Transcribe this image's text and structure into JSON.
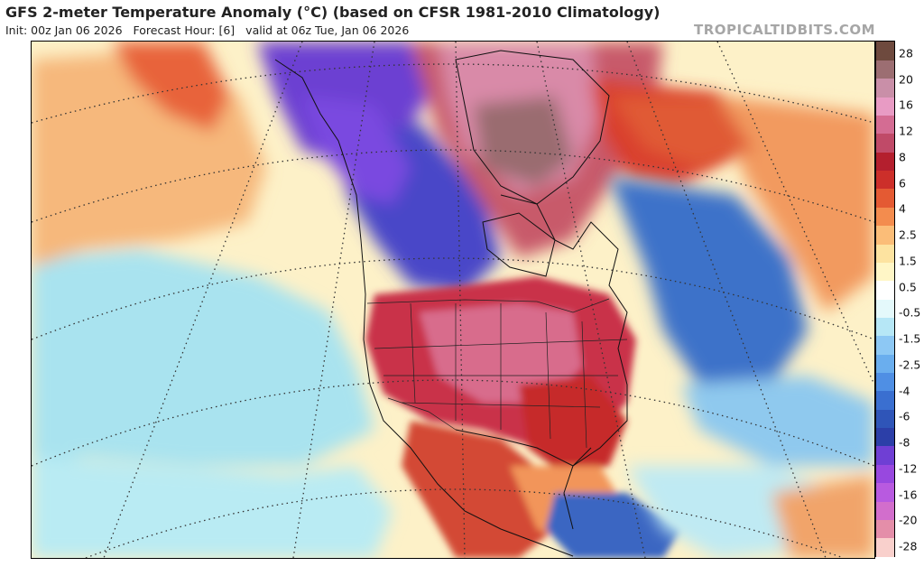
{
  "title": "GFS 2-meter Temperature Anomaly (°C) (based on CFSR 1981-2010 Climatology)",
  "subtitle": {
    "init": "Init: 00z Jan 06 2026",
    "forecast_hour": "Forecast Hour: [6]",
    "valid": "valid at 06z Tue, Jan 06 2026"
  },
  "credit": "TROPICALTIDBITS.COM",
  "colorbar": {
    "colors": [
      "#f9d0cc",
      "#e48ea9",
      "#d26ecc",
      "#b85ae0",
      "#9848df",
      "#6f3fd4",
      "#2c3fa8",
      "#2f55b8",
      "#3a6fd0",
      "#4f8fe4",
      "#6aaeee",
      "#8dc8f4",
      "#b6e7f6",
      "#e4f9fb",
      "#ffffff",
      "#fff6c6",
      "#fde3a0",
      "#fbbd78",
      "#f38c4e",
      "#e45a33",
      "#cc2f2a",
      "#b41f2e",
      "#c04a68",
      "#d46c93",
      "#e89bc4",
      "#c98fa8",
      "#9c6e72",
      "#6e4a3e"
    ],
    "ticks": [
      "28",
      "20",
      "16",
      "12",
      "8",
      "6",
      "4",
      "2.5",
      "1.5",
      "0.5",
      "-0.5",
      "-1.5",
      "-2.5",
      "-4",
      "-6",
      "-8",
      "-12",
      "-16",
      "-20",
      "-28"
    ]
  },
  "map": {
    "ocean_color": "#fdf1c8",
    "regions": [
      {
        "name": "pacific-cold-west",
        "color": "#a9e3ef"
      },
      {
        "name": "pacific-cold-south",
        "color": "#b9ebf3"
      },
      {
        "name": "pacific-warm-band",
        "color": "#f6b87c"
      },
      {
        "name": "pacific-warm-core",
        "color": "#e8643a"
      },
      {
        "name": "alaska-cold",
        "color": "#6c3fd2"
      },
      {
        "name": "canada-cold",
        "color": "#4a46c8"
      },
      {
        "name": "canada-cold-deep",
        "color": "#7a4ae0"
      },
      {
        "name": "arctic-warm",
        "color": "#c85a6a"
      },
      {
        "name": "greenland-warm",
        "color": "#d98aa8"
      },
      {
        "name": "greenland-core",
        "color": "#9a6c70"
      },
      {
        "name": "greenland-rim",
        "color": "#d9402e"
      },
      {
        "name": "conus-warm",
        "color": "#c9304a"
      },
      {
        "name": "conus-core",
        "color": "#d86c8c"
      },
      {
        "name": "southeast-warm",
        "color": "#c62a2c"
      },
      {
        "name": "mexico-warm",
        "color": "#d34a34"
      },
      {
        "name": "gulf-warm",
        "color": "#f2955a"
      },
      {
        "name": "atlantic-cold",
        "color": "#3e72c9"
      },
      {
        "name": "atlantic-cold-light",
        "color": "#8fc9ee"
      },
      {
        "name": "atlantic-warm-band",
        "color": "#f29a5e"
      },
      {
        "name": "north-atlantic-warm",
        "color": "#e05a36"
      },
      {
        "name": "central-america-cold",
        "color": "#3a66c2"
      },
      {
        "name": "caribbean-light",
        "color": "#bfeaf3"
      },
      {
        "name": "south-america",
        "color": "#f1a46a"
      }
    ]
  }
}
